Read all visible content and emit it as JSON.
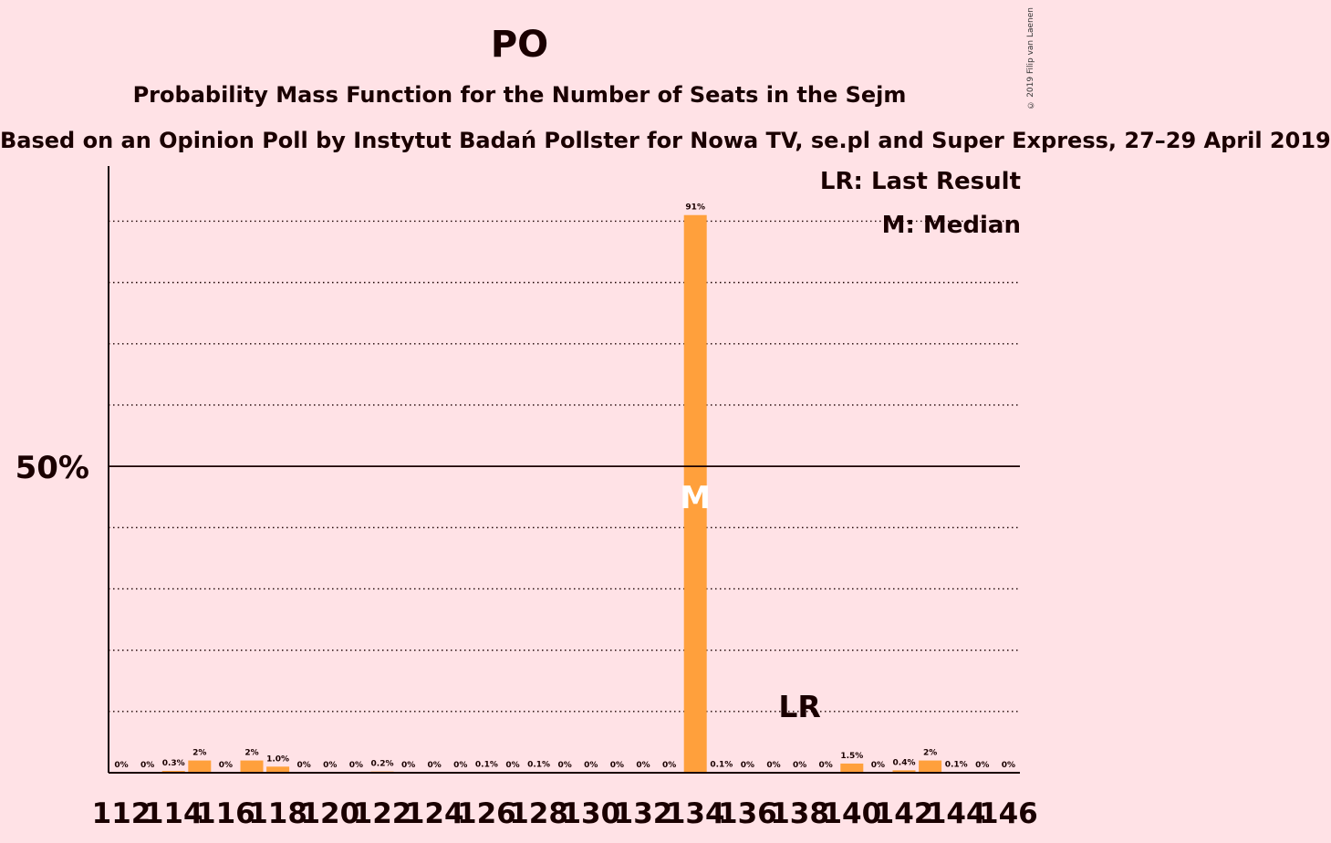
{
  "chart_data": {
    "type": "bar",
    "title": "PO",
    "subtitle": "Probability Mass Function for the Number of Seats in the Sejm",
    "subsubtitle": "Based on an Opinion Poll by Instytut Badań Pollster for Nowa TV, se.pl and Super Express, 27–29 April 2019",
    "credit": "© 2019 Filip van Laenen",
    "categories": [
      112,
      113,
      114,
      115,
      116,
      117,
      118,
      119,
      120,
      121,
      122,
      123,
      124,
      125,
      126,
      127,
      128,
      129,
      130,
      131,
      132,
      133,
      134,
      135,
      136,
      137,
      138,
      139,
      140,
      141,
      142,
      143,
      144,
      145,
      146
    ],
    "x_tick_labels": [
      "112",
      "114",
      "116",
      "118",
      "120",
      "122",
      "124",
      "126",
      "128",
      "130",
      "132",
      "134",
      "136",
      "138",
      "140",
      "142",
      "144",
      "146"
    ],
    "values": [
      0,
      0,
      0.3,
      2,
      0,
      2,
      1.0,
      0,
      0,
      0,
      0.2,
      0,
      0,
      0,
      0.1,
      0,
      0.1,
      0,
      0,
      0,
      0,
      0,
      91,
      0.1,
      0,
      0,
      0,
      0,
      1.5,
      0,
      0.4,
      2,
      0.1,
      0,
      0
    ],
    "value_labels": [
      "0%",
      "0%",
      "0.3%",
      "2%",
      "0%",
      "2%",
      "1.0%",
      "0%",
      "0%",
      "0%",
      "0.2%",
      "0%",
      "0%",
      "0%",
      "0.1%",
      "0%",
      "0.1%",
      "0%",
      "0%",
      "0%",
      "0%",
      "0%",
      "91%",
      "0.1%",
      "0%",
      "0%",
      "0%",
      "0%",
      "1.5%",
      "0%",
      "0.4%",
      "2%",
      "0.1%",
      "0%",
      "0%"
    ],
    "ylim": [
      0,
      99
    ],
    "y_tick_label": "50%",
    "y_tick_value": 50,
    "gridlines": [
      10,
      20,
      30,
      40,
      60,
      70,
      80,
      90
    ],
    "median_seat": 134,
    "median_label": "M",
    "last_result_seat": 138,
    "last_result_label": "LR",
    "legend": {
      "last_result": "LR: Last Result",
      "median": "M: Median"
    },
    "colors": {
      "bar": "#FFA03C",
      "background": "#FFE2E6",
      "text": "#1a0000"
    }
  }
}
